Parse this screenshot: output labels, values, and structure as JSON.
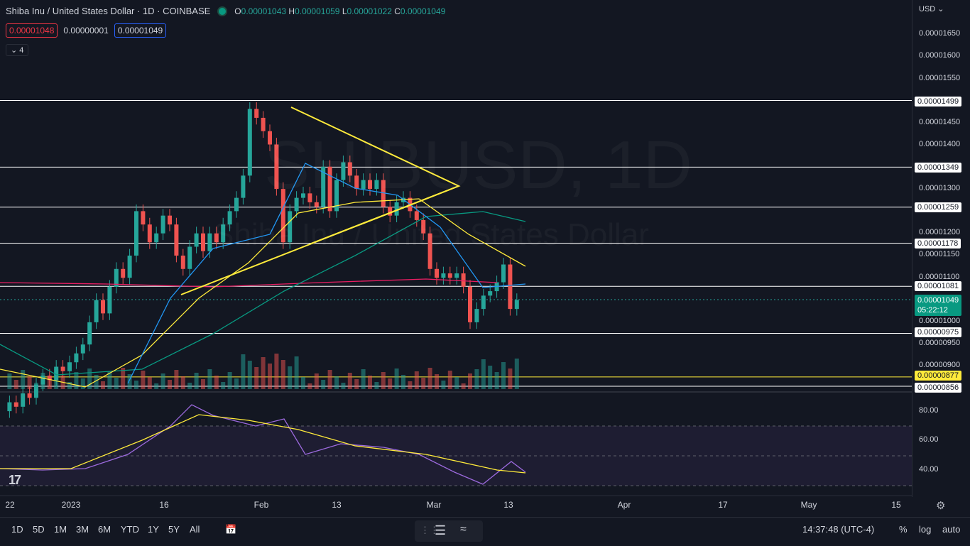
{
  "header": {
    "symbol_title": "Shiba Inu / United States Dollar · 1D · COINBASE",
    "o_label": "O",
    "o_value": "0.00001043",
    "h_label": "H",
    "h_value": "0.00001059",
    "l_label": "L",
    "l_value": "0.00001022",
    "c_label": "C",
    "c_value": "0.00001049",
    "sell_price": "0.00001048",
    "spread": "0.00000001",
    "buy_price": "0.00001049",
    "indicators_count": "4"
  },
  "watermark": {
    "line1": "SHIBUSD, 1D",
    "line2": "Shiba Inu / United States Dollar"
  },
  "price_axis": {
    "currency": "USD",
    "labels": [
      "0.00001650",
      "0.00001600",
      "0.00001550",
      "0.00001450",
      "0.00001400",
      "0.00001300",
      "0.00001200",
      "0.00001150",
      "0.00001100",
      "0.00001000",
      "0.00000950",
      "0.00000900"
    ],
    "level_tags": [
      "0.00001499",
      "0.00001349",
      "0.00001259",
      "0.00001178",
      "0.00001081",
      "0.00000975",
      "0.00000856"
    ],
    "highlight_tag": "0.00000877",
    "current_price": "0.00001049",
    "countdown": "05:22:12"
  },
  "rsi_axis": {
    "labels": [
      "80.00",
      "60.00",
      "40.00"
    ]
  },
  "time_axis": {
    "labels": [
      "22",
      "2023",
      "16",
      "Feb",
      "13",
      "Mar",
      "13",
      "Apr",
      "17",
      "May",
      "15"
    ]
  },
  "bottom": {
    "timeframes": [
      "1D",
      "5D",
      "1M",
      "3M",
      "6M",
      "YTD",
      "1Y",
      "5Y",
      "All"
    ],
    "clock": "14:37:48 (UTC-4)",
    "percent": "%",
    "log": "log",
    "auto": "auto"
  },
  "colors": {
    "up": "#26a69a",
    "down": "#ef5350",
    "ma_blue": "#2196f3",
    "ma_yellow": "#ffeb3b",
    "ma_teal": "#089981",
    "ma_red": "#e91e63",
    "rsi": "#9c6ade"
  },
  "icons": [
    "chevron-down-icon",
    "compare-icon",
    "gear-icon",
    "drag-handle-icon",
    "tradingview-logo-icon"
  ]
}
